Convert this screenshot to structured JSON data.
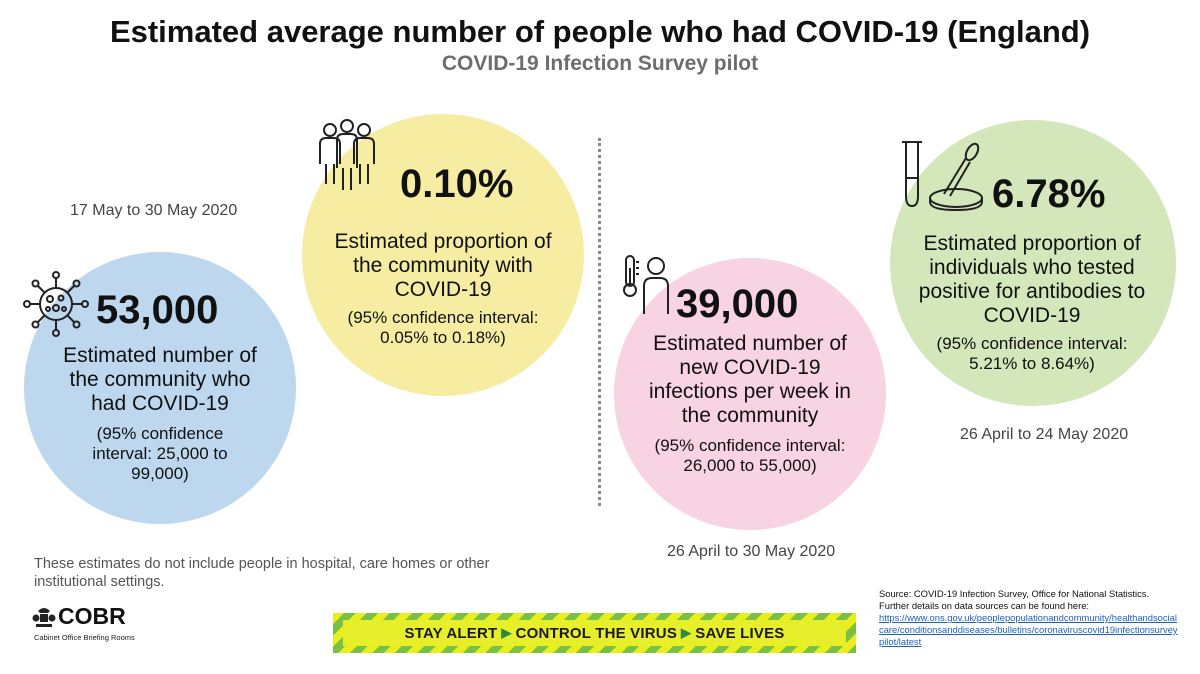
{
  "header": {
    "title": "Estimated average number of people who had COVID-19 (England)",
    "subtitle": "COVID-19 Infection Survey pilot"
  },
  "left_period": "17 May to 30 May 2020",
  "cards": {
    "community_count": {
      "value": "53,000",
      "description": "Estimated number of the community who had COVID-19",
      "ci": "(95% confidence interval: 25,000 to 99,000)",
      "icon": "virus-icon",
      "color": "#bdd7ee"
    },
    "community_proportion": {
      "value": "0.10%",
      "description": "Estimated proportion of the community with COVID-19",
      "ci": "(95% confidence interval: 0.05% to 0.18%)",
      "icon": "people-group-icon",
      "color": "#f6eda2"
    },
    "weekly_infections": {
      "value": "39,000",
      "description": "Estimated number of new COVID-19 infections per week in the community",
      "ci": "(95% confidence interval: 26,000 to 55,000)",
      "icon": "thermometer-person-icon",
      "color": "#f8d3e2",
      "period": "26 April to 30 May 2020"
    },
    "antibodies": {
      "value": "6.78%",
      "description": "Estimated proportion of individuals who tested positive for antibodies to COVID-19",
      "ci": "(95% confidence interval: 5.21% to 8.64%)",
      "icon": "test-tube-icon",
      "color": "#d3e7bb",
      "period": "26 April to 24 May 2020"
    }
  },
  "footnote": "These estimates do not include people in hospital, care homes or other institutional settings.",
  "logo": {
    "name": "COBR",
    "subtitle": "Cabinet Office Briefing Rooms"
  },
  "banner": {
    "part1": "STAY ALERT",
    "part2": "CONTROL THE VIRUS",
    "part3": "SAVE LIVES"
  },
  "source": {
    "line1": "Source: COVID-19 Infection Survey, Office for National Statistics.",
    "line2": "Further details on data sources can be found here:",
    "link": "https://www.ons.gov.uk/peoplepopulationandcommunity/healthandsocialcare/conditionsanddiseases/bulletins/coronaviruscovid19infectionsurveypilot/latest"
  }
}
